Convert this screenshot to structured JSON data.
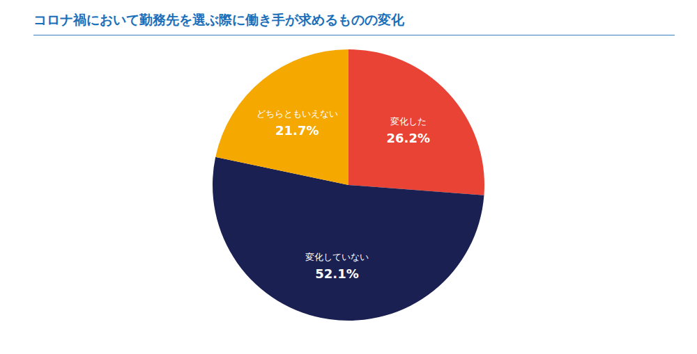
{
  "chart_data": {
    "type": "pie",
    "title": "コロナ禍において勤務先を選ぶ際に働き手が求めるものの変化",
    "categories": [
      "変化した",
      "変化していない",
      "どちらともいえない"
    ],
    "values": [
      26.2,
      52.1,
      21.7
    ],
    "value_labels": [
      "26.2%",
      "52.1%",
      "21.7%"
    ],
    "colors": [
      "#e84335",
      "#1a2051",
      "#f5a800"
    ],
    "data_labels": true
  }
}
